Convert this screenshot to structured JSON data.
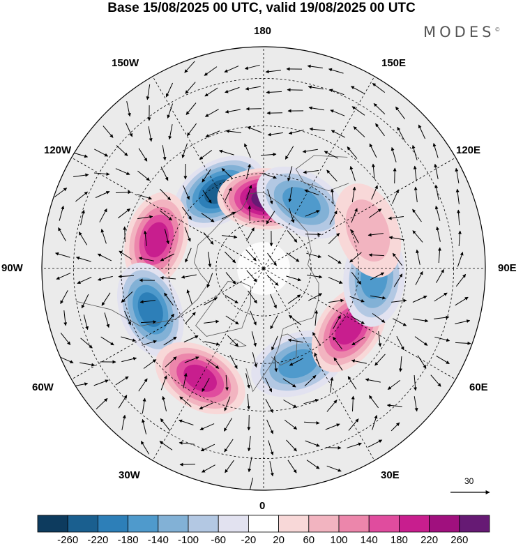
{
  "title": "Base 15/08/2025 00 UTC, valid 19/08/2025 00 UTC",
  "brand": "MODES",
  "brand_mark": "©",
  "lon_labels": {
    "lon_180": "180",
    "lon_150w": "150W",
    "lon_150e": "150E",
    "lon_120w": "120W",
    "lon_120e": "120E",
    "lon_90w": "90W",
    "lon_90e": "90E",
    "lon_60w": "60W",
    "lon_60e": "60E",
    "lon_30w": "30W",
    "lon_30e": "30E",
    "lon_0": "0"
  },
  "reference_vector": {
    "value": "30"
  },
  "colorbar": {
    "colors": [
      "#0d3b5e",
      "#1a5f8f",
      "#2d7fb8",
      "#4f9acc",
      "#82b1d6",
      "#b3c8e3",
      "#e2e2f0",
      "#ffffff",
      "#f8d8d8",
      "#f2b4c0",
      "#ec86ab",
      "#e04c9e",
      "#c81e8e",
      "#a0107e",
      "#661a74"
    ],
    "ticks": [
      "-260",
      "-220",
      "-180",
      "-140",
      "-100",
      "-60",
      "-20",
      "20",
      "60",
      "100",
      "140",
      "180",
      "220",
      "260"
    ]
  },
  "anomalies": [
    {
      "name": "anomaly-low-alaska",
      "lon": -150,
      "lat": 62,
      "value": -240
    },
    {
      "name": "anomaly-high-bering",
      "lon": 178,
      "lat": 68,
      "value": 260
    },
    {
      "name": "anomaly-low-siberia",
      "lon": 150,
      "lat": 66,
      "value": -170
    },
    {
      "name": "anomaly-high-canada",
      "lon": -105,
      "lat": 55,
      "value": 200
    },
    {
      "name": "anomaly-low-hudson",
      "lon": -70,
      "lat": 52,
      "value": -200
    },
    {
      "name": "anomaly-high-greenland",
      "lon": -30,
      "lat": 50,
      "value": 200
    },
    {
      "name": "anomaly-low-scandinavia",
      "lon": 20,
      "lat": 58,
      "value": -170
    },
    {
      "name": "anomaly-high-urals",
      "lon": 55,
      "lat": 57,
      "value": 190
    },
    {
      "name": "anomaly-low-central-siberia",
      "lon": 85,
      "lat": 55,
      "value": -140
    },
    {
      "name": "anomaly-high-mongolia",
      "lon": 110,
      "lat": 55,
      "value": 60
    }
  ]
}
